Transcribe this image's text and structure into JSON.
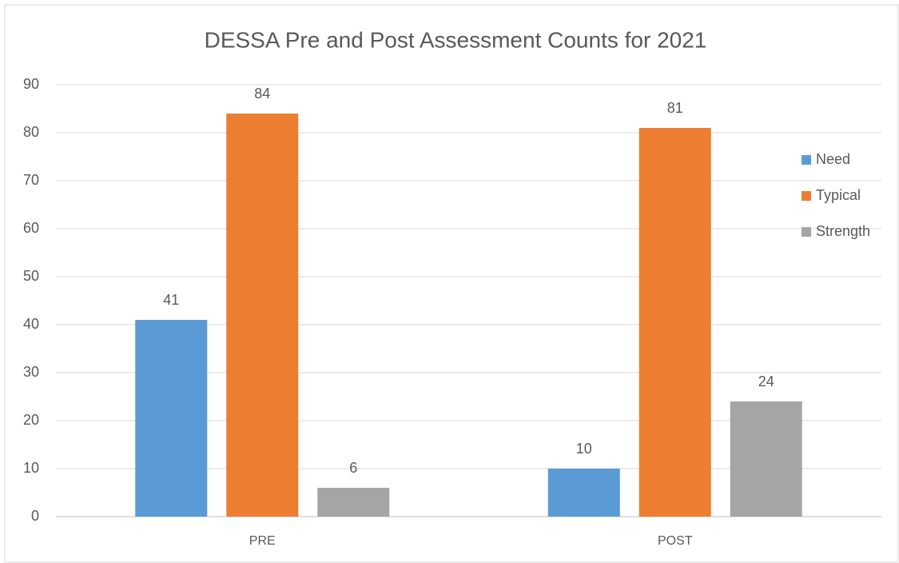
{
  "chart_data": {
    "type": "bar",
    "title": "DESSA Pre and Post Assessment Counts for 2021",
    "categories": [
      "PRE",
      "POST"
    ],
    "series": [
      {
        "name": "Need",
        "color": "#5b9bd5",
        "values": [
          41,
          10
        ]
      },
      {
        "name": "Typical",
        "color": "#ed7d31",
        "values": [
          84,
          81
        ]
      },
      {
        "name": "Strength",
        "color": "#a5a5a5",
        "values": [
          6,
          24
        ]
      }
    ],
    "ylim": [
      0,
      90
    ],
    "yticks": [
      0,
      10,
      20,
      30,
      40,
      50,
      60,
      70,
      80,
      90
    ],
    "grid": true,
    "legend": "right",
    "data_labels": true
  }
}
